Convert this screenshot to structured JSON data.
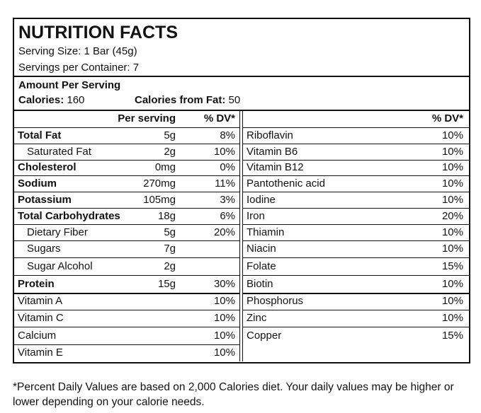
{
  "header": {
    "title": "NUTRITION FACTS",
    "serving_size": "Serving Size: 1 Bar (45g)",
    "servings": "Servings per Container: 7"
  },
  "amount": {
    "heading": "Amount Per Serving",
    "calories_label": "Calories:",
    "calories": "160",
    "fat_calories_label": "Calories from Fat:",
    "fat_calories": "50"
  },
  "table": {
    "left_header": [
      "Per serving",
      "% DV*"
    ],
    "right_header": "% DV*",
    "left_rows": [
      [
        "Total Fat",
        "5g",
        "8%"
      ],
      [
        "Saturated Fat",
        "2g",
        "10%"
      ],
      [
        "Cholesterol",
        "0mg",
        "0%"
      ],
      [
        "Sodium",
        "270mg",
        "11%"
      ],
      [
        "Potassium",
        "105mg",
        "3%"
      ],
      [
        "Total Carbohydrates",
        "18g",
        "6%"
      ],
      [
        "Dietary Fiber",
        "5g",
        "20%"
      ],
      [
        "Sugars",
        "7g",
        null
      ],
      [
        "Sugar Alcohol",
        "2g",
        null
      ],
      [
        "Protein",
        "15g",
        "30%"
      ],
      [
        "Vitamin A",
        null,
        "10%"
      ],
      [
        "Vitamin C",
        null,
        "10%"
      ],
      [
        "Calcium",
        null,
        "10%"
      ],
      [
        "Vitamin E",
        null,
        "10%"
      ]
    ],
    "right_rows": [
      [
        "Riboflavin",
        "10%"
      ],
      [
        "Vitamin B6",
        "10%"
      ],
      [
        "Vitamin B12",
        "10%"
      ],
      [
        "Pantothenic acid",
        "10%"
      ],
      [
        "Iodine",
        "10%"
      ],
      [
        "Iron",
        "20%"
      ],
      [
        "Thiamin",
        "10%"
      ],
      [
        "Niacin",
        "10%"
      ],
      [
        "Folate",
        "15%"
      ],
      [
        "Biotin",
        "10%"
      ],
      [
        "Phosphorus",
        "10%"
      ],
      [
        "Zinc",
        "10%"
      ],
      [
        "Copper",
        "15%"
      ]
    ]
  },
  "footnote": "*Percent Daily Values are based on 2,000 Calories diet. Your daily values may be higher or lower depending on your calorie needs."
}
